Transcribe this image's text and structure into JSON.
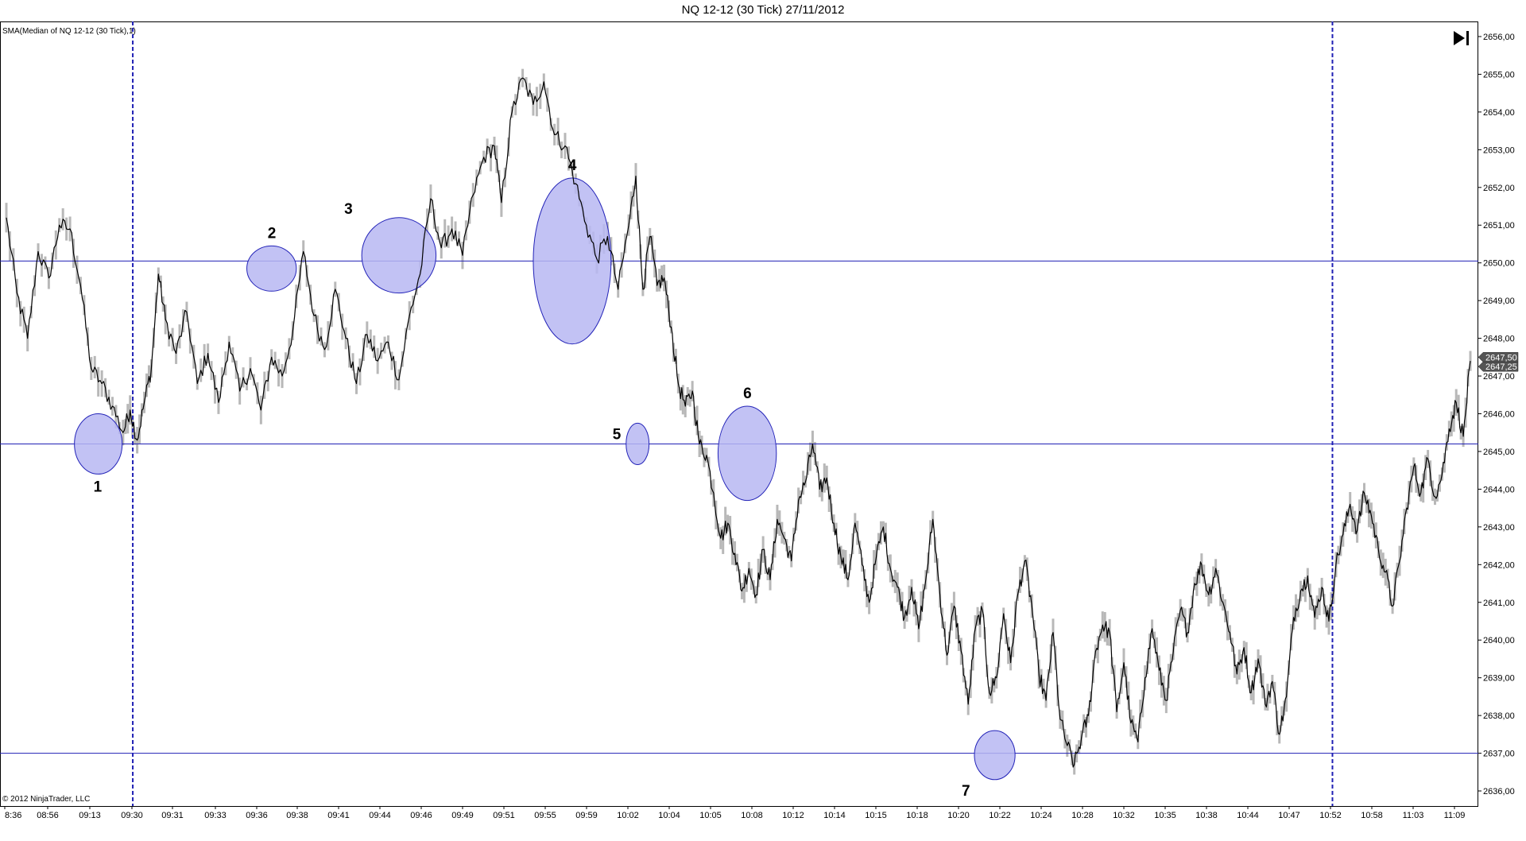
{
  "window": {
    "title": "NQ 12-12 (30 Tick)  27/11/2012"
  },
  "indicator_label": "SMA(Median of NQ 12-12 (30 Tick),1)",
  "copyright": "© 2012 NinjaTrader, LLC",
  "colors": {
    "price_line": "#000000",
    "bar_shadow": "#b8b8b8",
    "horizontal_lines": "#1f1fb4",
    "vertical_lines": "#1f1fb4",
    "circle_fill": "#b7b7f2",
    "circle_stroke": "#2323b8",
    "axis": "#000000"
  },
  "toolbar": {
    "end_icon": "skip-to-end-icon"
  },
  "price_markers": [
    "2647,50",
    "2647,25"
  ],
  "chart_data": {
    "type": "line",
    "title": "NQ 12-12 (30 Tick)  27/11/2012",
    "series": [
      {
        "name": "SMA(Median of NQ 12-12 (30 Tick),1)",
        "anchors": [
          [
            0,
            2651.2
          ],
          [
            6,
            2649.2
          ],
          [
            12,
            2648.0
          ],
          [
            18,
            2650.3
          ],
          [
            24,
            2649.6
          ],
          [
            30,
            2651.0
          ],
          [
            36,
            2650.9
          ],
          [
            42,
            2649.4
          ],
          [
            48,
            2647.2
          ],
          [
            54,
            2646.8
          ],
          [
            60,
            2646.2
          ],
          [
            66,
            2645.5
          ],
          [
            70,
            2646.1
          ],
          [
            74,
            2645.3
          ],
          [
            78,
            2646.3
          ],
          [
            82,
            2647.2
          ],
          [
            86,
            2649.7
          ],
          [
            90,
            2648.5
          ],
          [
            96,
            2647.6
          ],
          [
            102,
            2648.7
          ],
          [
            108,
            2646.8
          ],
          [
            114,
            2647.6
          ],
          [
            120,
            2646.3
          ],
          [
            126,
            2647.9
          ],
          [
            132,
            2646.6
          ],
          [
            138,
            2647.2
          ],
          [
            144,
            2646.1
          ],
          [
            150,
            2647.5
          ],
          [
            156,
            2647.0
          ],
          [
            162,
            2648.2
          ],
          [
            168,
            2650.3
          ],
          [
            174,
            2648.6
          ],
          [
            180,
            2647.7
          ],
          [
            186,
            2649.3
          ],
          [
            192,
            2648.0
          ],
          [
            198,
            2646.8
          ],
          [
            204,
            2648.1
          ],
          [
            210,
            2647.4
          ],
          [
            216,
            2647.9
          ],
          [
            222,
            2646.9
          ],
          [
            228,
            2648.6
          ],
          [
            234,
            2649.7
          ],
          [
            240,
            2651.7
          ],
          [
            246,
            2650.4
          ],
          [
            252,
            2650.9
          ],
          [
            258,
            2650.2
          ],
          [
            264,
            2651.8
          ],
          [
            270,
            2652.8
          ],
          [
            276,
            2653.1
          ],
          [
            280,
            2651.6
          ],
          [
            286,
            2654.0
          ],
          [
            292,
            2654.9
          ],
          [
            298,
            2654.2
          ],
          [
            304,
            2654.8
          ],
          [
            310,
            2653.4
          ],
          [
            316,
            2653.1
          ],
          [
            322,
            2652.1
          ],
          [
            328,
            2651.0
          ],
          [
            334,
            2650.1
          ],
          [
            340,
            2650.7
          ],
          [
            346,
            2649.3
          ],
          [
            352,
            2651.0
          ],
          [
            356,
            2652.3
          ],
          [
            360,
            2649.3
          ],
          [
            364,
            2650.7
          ],
          [
            368,
            2649.4
          ],
          [
            372,
            2649.6
          ],
          [
            376,
            2648.3
          ],
          [
            380,
            2646.8
          ],
          [
            384,
            2646.2
          ],
          [
            388,
            2646.6
          ],
          [
            392,
            2645.2
          ],
          [
            396,
            2644.9
          ],
          [
            400,
            2643.9
          ],
          [
            404,
            2642.7
          ],
          [
            408,
            2643.1
          ],
          [
            412,
            2642.3
          ],
          [
            416,
            2641.3
          ],
          [
            420,
            2641.9
          ],
          [
            424,
            2641.2
          ],
          [
            428,
            2642.4
          ],
          [
            432,
            2641.6
          ],
          [
            436,
            2643.2
          ],
          [
            440,
            2642.7
          ],
          [
            444,
            2642.1
          ],
          [
            448,
            2643.7
          ],
          [
            452,
            2644.2
          ],
          [
            456,
            2645.2
          ],
          [
            460,
            2644.0
          ],
          [
            464,
            2644.3
          ],
          [
            468,
            2643.1
          ],
          [
            472,
            2642.2
          ],
          [
            476,
            2641.6
          ],
          [
            480,
            2643.1
          ],
          [
            484,
            2642.0
          ],
          [
            488,
            2641.0
          ],
          [
            492,
            2642.2
          ],
          [
            496,
            2643.0
          ],
          [
            500,
            2641.9
          ],
          [
            504,
            2641.4
          ],
          [
            508,
            2640.6
          ],
          [
            512,
            2641.4
          ],
          [
            516,
            2640.3
          ],
          [
            520,
            2641.6
          ],
          [
            524,
            2643.2
          ],
          [
            528,
            2641.2
          ],
          [
            532,
            2639.6
          ],
          [
            536,
            2640.9
          ],
          [
            540,
            2639.7
          ],
          [
            544,
            2638.3
          ],
          [
            548,
            2640.3
          ],
          [
            552,
            2640.8
          ],
          [
            556,
            2638.6
          ],
          [
            560,
            2639.0
          ],
          [
            564,
            2640.7
          ],
          [
            568,
            2639.4
          ],
          [
            572,
            2641.2
          ],
          [
            576,
            2642.1
          ],
          [
            580,
            2640.9
          ],
          [
            584,
            2639.1
          ],
          [
            588,
            2638.4
          ],
          [
            592,
            2640.2
          ],
          [
            596,
            2637.9
          ],
          [
            600,
            2637.2
          ],
          [
            604,
            2636.7
          ],
          [
            608,
            2637.4
          ],
          [
            612,
            2638.0
          ],
          [
            616,
            2639.7
          ],
          [
            620,
            2640.4
          ],
          [
            624,
            2640.2
          ],
          [
            628,
            2638.1
          ],
          [
            632,
            2639.4
          ],
          [
            636,
            2637.8
          ],
          [
            640,
            2637.3
          ],
          [
            644,
            2639.0
          ],
          [
            648,
            2640.3
          ],
          [
            652,
            2639.2
          ],
          [
            656,
            2638.4
          ],
          [
            660,
            2639.7
          ],
          [
            664,
            2640.8
          ],
          [
            668,
            2640.2
          ],
          [
            672,
            2641.5
          ],
          [
            676,
            2642.0
          ],
          [
            680,
            2641.2
          ],
          [
            684,
            2641.9
          ],
          [
            688,
            2641.0
          ],
          [
            692,
            2640.2
          ],
          [
            696,
            2639.1
          ],
          [
            700,
            2639.8
          ],
          [
            704,
            2638.6
          ],
          [
            708,
            2639.5
          ],
          [
            712,
            2638.3
          ],
          [
            716,
            2638.9
          ],
          [
            720,
            2637.5
          ],
          [
            724,
            2638.5
          ],
          [
            728,
            2640.6
          ],
          [
            732,
            2641.3
          ],
          [
            736,
            2641.7
          ],
          [
            740,
            2640.6
          ],
          [
            744,
            2641.4
          ],
          [
            748,
            2640.5
          ],
          [
            752,
            2642.0
          ],
          [
            756,
            2642.8
          ],
          [
            760,
            2643.6
          ],
          [
            764,
            2642.9
          ],
          [
            768,
            2643.9
          ],
          [
            772,
            2643.3
          ],
          [
            776,
            2642.4
          ],
          [
            780,
            2641.8
          ],
          [
            784,
            2640.9
          ],
          [
            788,
            2642.1
          ],
          [
            792,
            2643.5
          ],
          [
            796,
            2644.6
          ],
          [
            800,
            2643.9
          ],
          [
            804,
            2644.8
          ],
          [
            808,
            2643.8
          ],
          [
            812,
            2644.4
          ],
          [
            816,
            2645.6
          ],
          [
            820,
            2646.3
          ],
          [
            824,
            2645.4
          ],
          [
            828,
            2647.4
          ]
        ]
      }
    ],
    "x_tick_labels": [
      "8:36",
      "08:56",
      "09:13",
      "09:30",
      "09:31",
      "09:33",
      "09:36",
      "09:38",
      "09:41",
      "09:44",
      "09:46",
      "09:49",
      "09:51",
      "09:55",
      "09:59",
      "10:02",
      "10:04",
      "10:05",
      "10:08",
      "10:12",
      "10:14",
      "10:15",
      "10:18",
      "10:20",
      "10:22",
      "10:24",
      "10:28",
      "10:32",
      "10:35",
      "10:38",
      "10:44",
      "10:47",
      "10:52",
      "10:58",
      "11:03",
      "11:09"
    ],
    "y_ticks": [
      2636,
      2637,
      2638,
      2639,
      2640,
      2641,
      2642,
      2643,
      2644,
      2645,
      2646,
      2647,
      2648,
      2649,
      2650,
      2651,
      2652,
      2653,
      2654,
      2655,
      2656
    ],
    "y_tick_labels": [
      "2636,00",
      "2637,00",
      "2638,00",
      "2639,00",
      "2640,00",
      "2641,00",
      "2642,00",
      "2643,00",
      "2644,00",
      "2645,00",
      "2646,00",
      "2647,00",
      "2648,00",
      "2649,00",
      "2650,00",
      "2651,00",
      "2652,00",
      "2653,00",
      "2654,00",
      "2655,00",
      "2656,00"
    ],
    "ylim": [
      2635.6,
      2656.4
    ],
    "x_range": [
      0,
      828
    ],
    "horizontal_lines": [
      2650.05,
      2645.2,
      2637.0
    ],
    "vertical_line_bars": [
      71.5,
      750
    ],
    "annotations": [
      {
        "label": "1",
        "bar": 52,
        "price": 2645.2,
        "bar_rx": 13.5,
        "price_ry": 0.8
      },
      {
        "label": "2",
        "bar": 150,
        "price": 2649.85,
        "bar_rx": 14,
        "price_ry": 0.6
      },
      {
        "label": "3",
        "bar": 222,
        "price": 2650.2,
        "bar_rx": 21,
        "price_ry": 1.0
      },
      {
        "label": "4",
        "bar": 320,
        "price": 2650.05,
        "bar_rx": 22,
        "price_ry": 2.2
      },
      {
        "label": "5",
        "bar": 357,
        "price": 2645.2,
        "bar_rx": 6.5,
        "price_ry": 0.55
      },
      {
        "label": "6",
        "bar": 419,
        "price": 2644.95,
        "bar_rx": 16.5,
        "price_ry": 1.25
      },
      {
        "label": "7",
        "bar": 559,
        "price": 2636.95,
        "bar_rx": 11.5,
        "price_ry": 0.65
      }
    ],
    "grid": false,
    "legend": "top-left"
  }
}
